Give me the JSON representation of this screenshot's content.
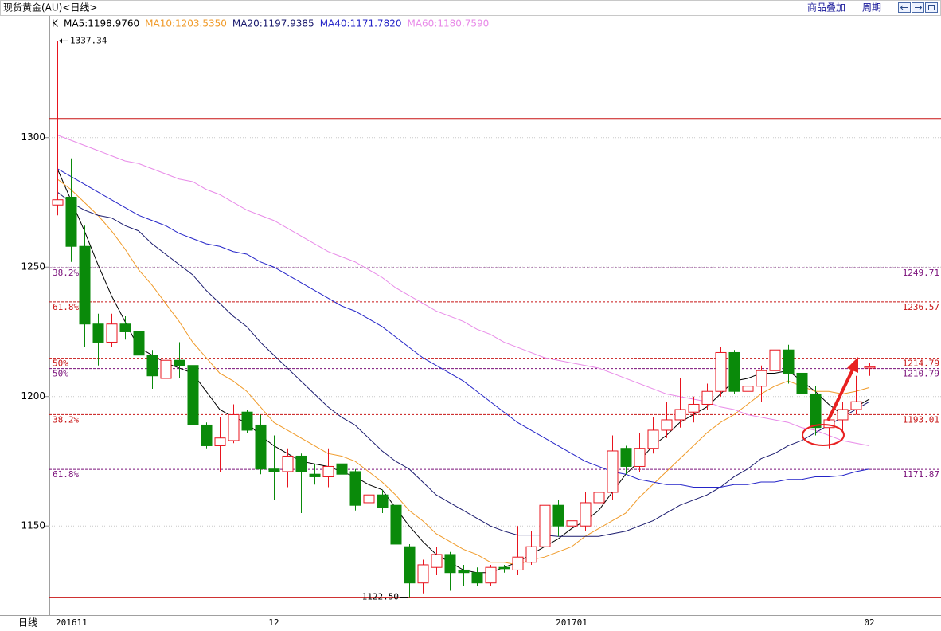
{
  "chart_data": {
    "type": "candlestick",
    "title": "现货黄金(AU)<日线>",
    "buttons": [
      "商品叠加",
      "周期"
    ],
    "period_label": "日线",
    "legend_prefix": "K",
    "categories": [
      "201611",
      null,
      null,
      null,
      null,
      null,
      null,
      null,
      null,
      null,
      null,
      null,
      null,
      null,
      null,
      null,
      "12",
      null,
      null,
      null,
      null,
      null,
      null,
      null,
      null,
      null,
      null,
      null,
      null,
      null,
      null,
      null,
      null,
      null,
      null,
      null,
      null,
      null,
      "201701",
      null,
      null,
      null,
      null,
      null,
      null,
      null,
      null,
      null,
      null,
      null,
      null,
      null,
      null,
      null,
      null,
      null,
      null,
      null,
      null,
      null,
      "02"
    ],
    "open": [
      1274,
      1277,
      1258,
      1228,
      1221,
      1228,
      1225,
      1216,
      1207,
      1214,
      1212,
      1189,
      1181,
      1183,
      1194,
      1189,
      1172,
      1171,
      1177,
      1170,
      1169,
      1174,
      1171,
      1159,
      1162,
      1158,
      1142,
      1128,
      1134,
      1139,
      1133,
      1132,
      1128,
      1134,
      1133,
      1136,
      1142,
      1158,
      1150,
      1150,
      1159,
      1163,
      1180,
      1173,
      1180,
      1187,
      1191,
      1194,
      1197,
      1202,
      1217,
      1202,
      1204,
      1210,
      1218,
      1209,
      1201,
      1188,
      1191,
      1195,
      1211
    ],
    "high": [
      1337.34,
      1292,
      1266,
      1232,
      1232,
      1231,
      1231,
      1218,
      1216,
      1221,
      1213,
      1190,
      1192,
      1197,
      1195,
      1193,
      1185,
      1180,
      1178,
      1174,
      1180,
      1177,
      1172,
      1164,
      1164,
      1159,
      1143,
      1137,
      1142,
      1140,
      1135,
      1134,
      1135,
      1135,
      1150,
      1148,
      1160,
      1160,
      1153,
      1163,
      1170,
      1185,
      1181,
      1186,
      1192,
      1198,
      1207,
      1200,
      1205,
      1219,
      1218,
      1208,
      1212,
      1219,
      1220,
      1210,
      1204,
      1193,
      1198,
      1208,
      1213
    ],
    "low": [
      1270,
      1252,
      1219,
      1212,
      1219,
      1222,
      1211,
      1203,
      1205,
      1207,
      1181,
      1180,
      1171,
      1182,
      1186,
      1170,
      1160,
      1165,
      1155,
      1166,
      1165,
      1168,
      1156,
      1151,
      1155,
      1139,
      1122.5,
      1124,
      1131,
      1125,
      1127,
      1127,
      1127,
      1132,
      1131,
      1135,
      1140,
      1146,
      1148,
      1148,
      1155,
      1160,
      1170,
      1171,
      1178,
      1184,
      1188,
      1190,
      1195,
      1200,
      1201,
      1199,
      1198,
      1208,
      1205,
      1193,
      1185,
      1180,
      1186,
      1193,
      1208
    ],
    "close": [
      1276,
      1258,
      1228,
      1221,
      1228,
      1225,
      1216,
      1208,
      1214,
      1212,
      1189,
      1181,
      1184,
      1193,
      1187,
      1172,
      1171,
      1177,
      1171,
      1169,
      1173,
      1170,
      1158,
      1162,
      1157,
      1143,
      1128,
      1135,
      1139,
      1132,
      1132,
      1128,
      1134,
      1133.5,
      1138,
      1142,
      1158,
      1150,
      1152,
      1159,
      1163,
      1179,
      1173,
      1180,
      1187,
      1191,
      1195,
      1197,
      1202,
      1217,
      1202,
      1204,
      1210,
      1218,
      1209,
      1201,
      1188,
      1191,
      1195,
      1198,
      1211.5
    ],
    "up_color": "#e8141e",
    "down_color": "#0a8a0a",
    "series": [
      {
        "name": "MA5:1198.9760",
        "color": "#000000",
        "values": [
          1288,
          1276,
          1264,
          1251,
          1239,
          1229,
          1219,
          1216,
          1213,
          1211,
          1209,
          1202,
          1195,
          1192,
          1190,
          1185,
          1181,
          1178,
          1175,
          1174,
          1173,
          1171,
          1169,
          1166,
          1164,
          1157,
          1150,
          1144,
          1139,
          1136,
          1133,
          1132,
          1132,
          1134,
          1136,
          1139,
          1142,
          1145,
          1149,
          1152,
          1156,
          1163,
          1170,
          1175,
          1181,
          1185,
          1190,
          1193,
          1196,
          1201,
          1206,
          1207,
          1209,
          1209,
          1210,
          1206,
          1202,
          1197,
          1193,
          1196,
          1199
        ]
      },
      {
        "name": "MA10:1203.5350",
        "color": "#f09a28",
        "values": [
          1284,
          1280,
          1275,
          1270,
          1264,
          1257,
          1249,
          1243,
          1236,
          1229,
          1221,
          1215,
          1209,
          1206,
          1202,
          1196,
          1190,
          1187,
          1184,
          1181,
          1178,
          1177,
          1175,
          1171,
          1167,
          1162,
          1156,
          1152,
          1147,
          1144,
          1141,
          1139,
          1136,
          1136,
          1135,
          1137,
          1138,
          1140,
          1142,
          1146,
          1149,
          1152,
          1155,
          1161,
          1166,
          1171,
          1176,
          1181,
          1186,
          1190,
          1193,
          1197,
          1201,
          1204,
          1206,
          1204,
          1202,
          1202,
          1201,
          1202,
          1203.5
        ]
      },
      {
        "name": "MA20:1197.9385",
        "color": "#1a1a6e",
        "values": [
          1279,
          1275,
          1272,
          1270,
          1269,
          1266,
          1264,
          1259,
          1255,
          1251,
          1247,
          1241,
          1236,
          1231,
          1227,
          1221,
          1216,
          1211,
          1206,
          1201,
          1196,
          1192,
          1189,
          1184,
          1179,
          1175,
          1172,
          1167,
          1162,
          1159,
          1156,
          1153,
          1150,
          1148,
          1146.5,
          1146.5,
          1146.5,
          1146,
          1146,
          1146,
          1146,
          1147,
          1148,
          1150,
          1152,
          1155,
          1158,
          1160,
          1162,
          1165,
          1169,
          1172,
          1176,
          1178,
          1181,
          1183,
          1186,
          1189,
          1192,
          1195,
          1198
        ]
      },
      {
        "name": "MA40:1171.7820",
        "color": "#2424c8",
        "values": [
          1288,
          1285,
          1282,
          1279,
          1276,
          1273,
          1270,
          1268,
          1266,
          1263,
          1261,
          1259,
          1258,
          1256,
          1255,
          1252,
          1250,
          1247,
          1244,
          1241,
          1238,
          1235,
          1233,
          1230,
          1227,
          1223,
          1219,
          1215,
          1212,
          1209,
          1206,
          1202,
          1198,
          1194,
          1190,
          1187,
          1184,
          1181,
          1178,
          1175,
          1173,
          1171,
          1170,
          1168,
          1167,
          1166,
          1166,
          1165,
          1165,
          1165,
          1166,
          1166,
          1167,
          1167,
          1168,
          1168,
          1169,
          1169,
          1169.5,
          1171,
          1172
        ]
      },
      {
        "name": "MA60:1180.7590",
        "color": "#e88ae8",
        "values": [
          1301,
          1299,
          1297,
          1295,
          1293,
          1291,
          1290,
          1288,
          1286,
          1284,
          1283,
          1280,
          1278,
          1275,
          1272,
          1270,
          1268,
          1265,
          1262,
          1259,
          1256,
          1254,
          1252,
          1249,
          1246,
          1242,
          1239,
          1236,
          1233,
          1231,
          1229,
          1226,
          1224,
          1221,
          1219,
          1217,
          1215,
          1214,
          1213,
          1212,
          1211,
          1209,
          1207,
          1205,
          1203,
          1201,
          1200,
          1199,
          1198,
          1196,
          1195,
          1193,
          1192,
          1191,
          1190,
          1188,
          1187,
          1185,
          1183,
          1182,
          1181
        ]
      }
    ],
    "ylim": [
      1115.6,
      1347
    ],
    "yticks": [
      1150,
      1200,
      1250,
      1300
    ],
    "grid": true,
    "hlines": [
      {
        "value": 1307.4,
        "color": "#c81414"
      },
      {
        "value": 1122.5,
        "color": "#c81414"
      }
    ],
    "levels": [
      {
        "value": 1249.71,
        "ratio": "38.2%",
        "color": "#7a107a"
      },
      {
        "value": 1236.57,
        "ratio": "61.8%",
        "color": "#c81414"
      },
      {
        "value": 1214.79,
        "ratio": "50%",
        "color": "#c81414"
      },
      {
        "value": 1210.79,
        "ratio": "50%",
        "color": "#7a107a"
      },
      {
        "value": 1193.01,
        "ratio": "38.2%",
        "color": "#c81414"
      },
      {
        "value": 1171.87,
        "ratio": "61.8%",
        "color": "#7a107a"
      }
    ],
    "annotations": [
      {
        "value": 1337.34,
        "label": "1337.34"
      },
      {
        "value": 1122.5,
        "label": "1122.50"
      }
    ]
  }
}
